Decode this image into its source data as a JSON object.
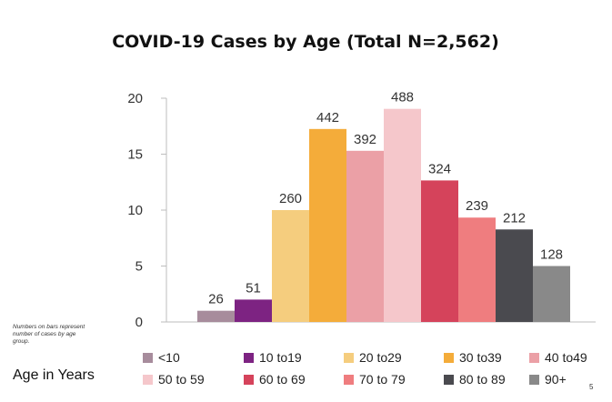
{
  "slide": {
    "note_line1": "Numbers on bars represent",
    "note_line2": "number of cases by age",
    "note_line3": "group.",
    "age_label": "Age in Years",
    "page_number": "5"
  },
  "chart_data": {
    "type": "bar",
    "title": "COVID-19 Cases by Age (Total N=2,562)",
    "categories": [
      "<10",
      "10 to19",
      "20 to29",
      "30 to39",
      "40 to49",
      "50 to 59",
      "60 to 69",
      "70 to 79",
      "80 to 89",
      "90+"
    ],
    "values": [
      1,
      2,
      10,
      17.25,
      15.3,
      19.05,
      12.65,
      9.33,
      8.27,
      5
    ],
    "data_labels": [
      "26",
      "51",
      "260",
      "442",
      "392",
      "488",
      "324",
      "239",
      "212",
      "128"
    ],
    "colors": [
      "#a78c9c",
      "#7d2382",
      "#f5cd7e",
      "#f4ac3a",
      "#eba0a6",
      "#f5c7cb",
      "#d5435b",
      "#ef7d7f",
      "#4a4a4f",
      "#898989"
    ],
    "yticks": [
      "0",
      "5",
      "10",
      "15",
      "20"
    ],
    "ylim": [
      0,
      20
    ],
    "xlabel": "",
    "ylabel": "",
    "grid": false,
    "legend_position": "bottom"
  }
}
